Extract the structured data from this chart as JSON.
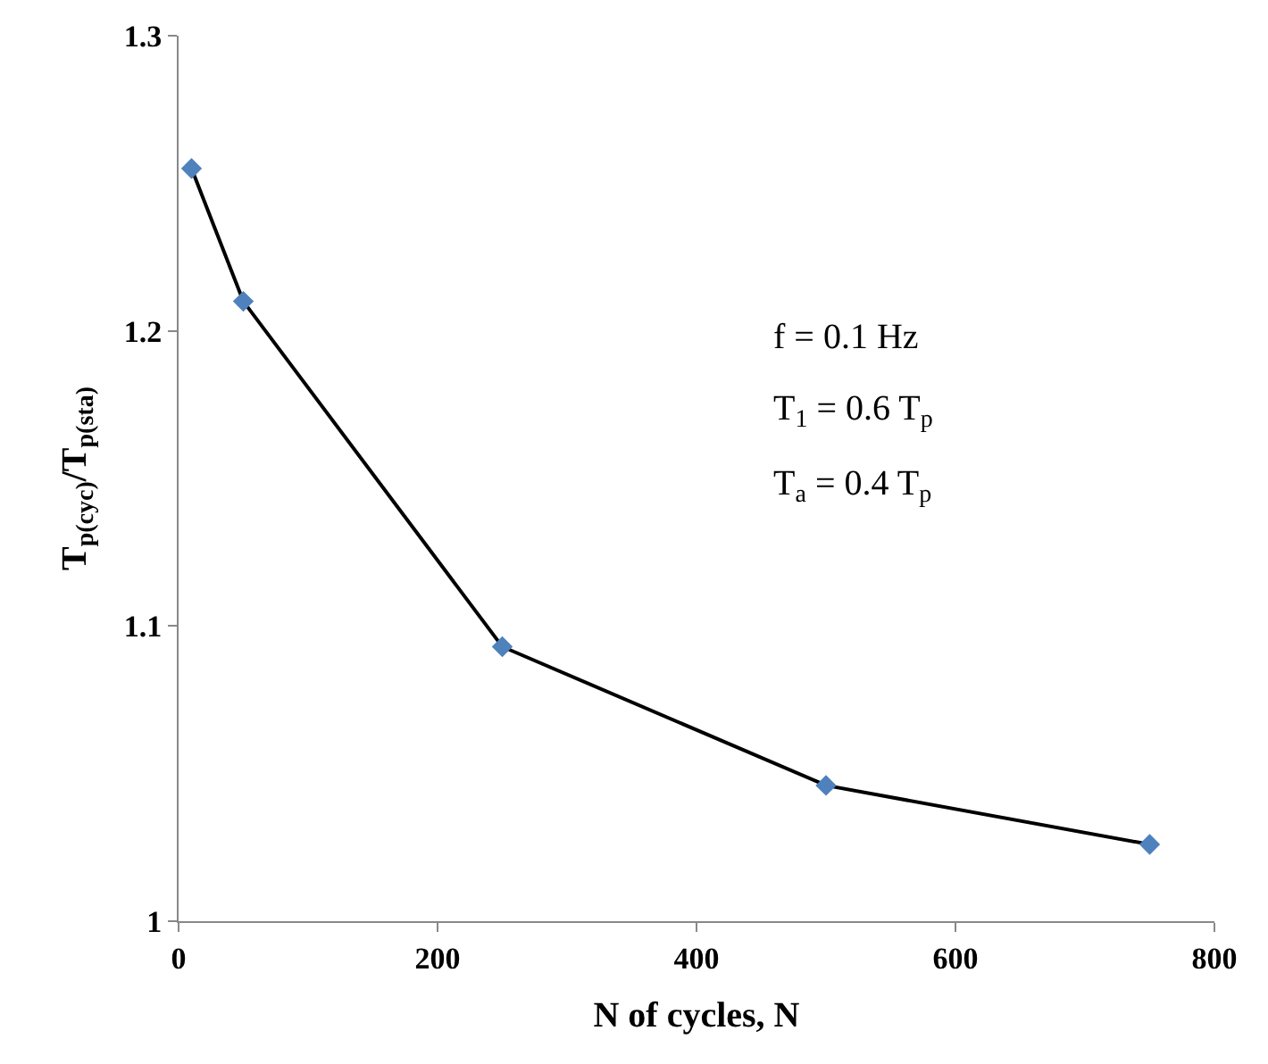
{
  "chart_data": {
    "type": "line",
    "xlabel": "N of cycles, N",
    "ylabel": "T$_{p(cyc)}$/T$_{p(sta)}$",
    "x": [
      10,
      50,
      250,
      500,
      750
    ],
    "series": [
      {
        "color": "#4f81bd",
        "values": [
          1.255,
          1.21,
          1.093,
          1.046,
          1.026
        ]
      }
    ],
    "xlim": [
      0,
      800
    ],
    "xticks": [
      0,
      200,
      400,
      600,
      800
    ],
    "ylim": [
      1,
      1.3
    ],
    "yticks": [
      {
        "value": 1,
        "label": "1"
      },
      {
        "value": 1.1,
        "label": "1.1"
      },
      {
        "value": 1.2,
        "label": "1.2"
      },
      {
        "value": 1.3,
        "label": "1.3"
      }
    ],
    "annotations": [
      "f = 0.1 Hz",
      "T$_{1}$ = 0.6 T$_{p}$",
      "T$_{a}$ = 0.4 T$_{p}$"
    ],
    "marker": "diamond",
    "line_style": "solid",
    "grid": false,
    "legend": false
  }
}
